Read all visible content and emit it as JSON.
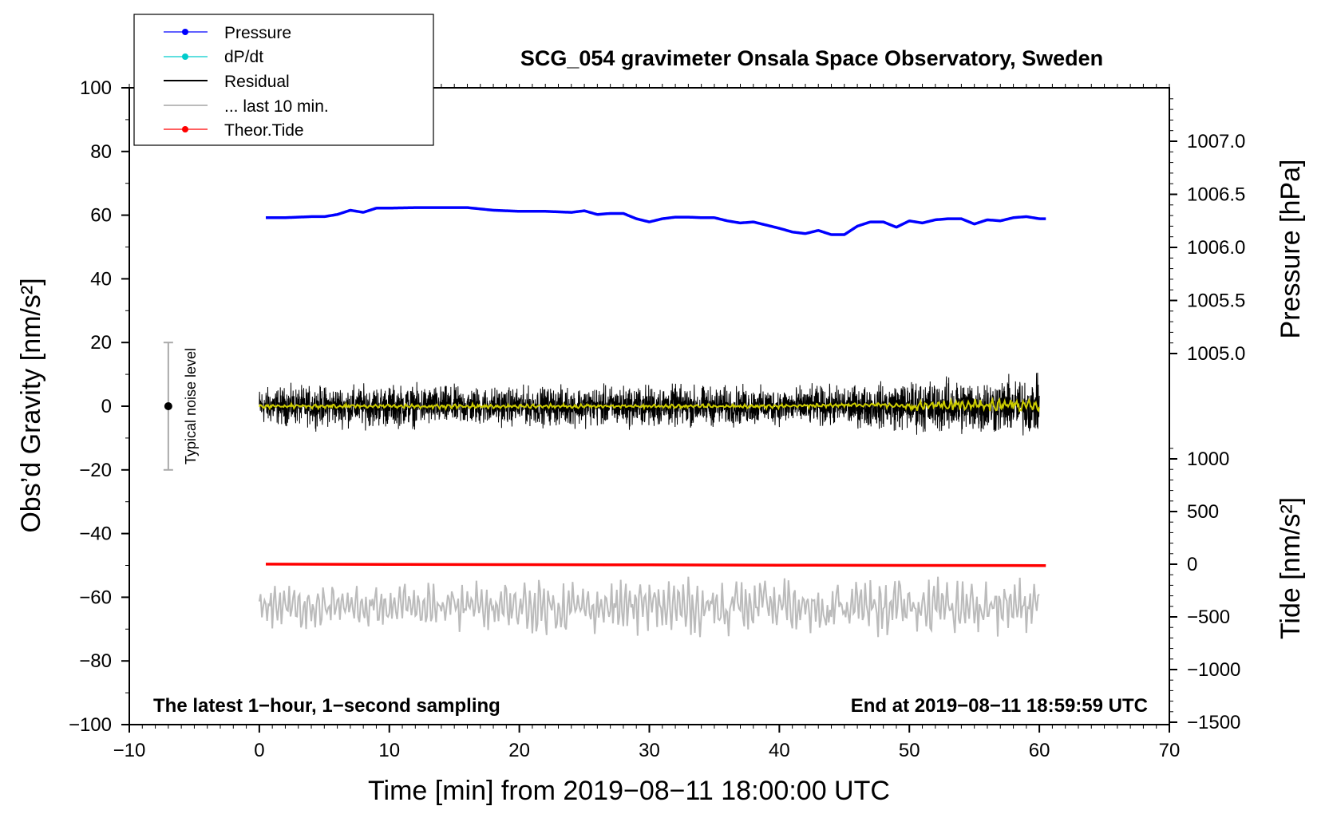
{
  "chart_data": {
    "type": "line",
    "title": "SCG_054 gravimeter Onsala Space Observatory, Sweden",
    "xlabel": "Time [min] from 2019−08−11 18:00:00 UTC",
    "ylabel_left": "Obs’d Gravity [nm/s²]",
    "ylabel_right_top": "Pressure [hPa]",
    "ylabel_right_bottom": "Tide [nm/s²]",
    "xlim": [
      -10,
      70
    ],
    "ylim": [
      -100,
      100
    ],
    "x_ticks": [
      "−10",
      "0",
      "10",
      "20",
      "30",
      "40",
      "50",
      "60",
      "70"
    ],
    "y_ticks": [
      "−100",
      "−80",
      "−60",
      "−40",
      "−20",
      "0",
      "20",
      "40",
      "60",
      "80",
      "100"
    ],
    "pressure_axis": {
      "ticks": [
        "1005.0",
        "1005.5",
        "1006.0",
        "1006.5",
        "1007.0"
      ]
    },
    "tide_axis": {
      "ticks": [
        "−1500",
        "−1000",
        "−500",
        "0",
        "500",
        "1000"
      ]
    },
    "legend": {
      "position": "top-left",
      "entries": [
        "Pressure",
        "dP/dt",
        "Residual",
        "... last 10 min.",
        "Theor.Tide"
      ]
    },
    "series": [
      {
        "name": "Pressure",
        "unit": "hPa",
        "color": "#0000ff",
        "x": [
          0.5,
          2,
          3,
          4,
          5,
          6,
          7,
          8,
          9,
          10,
          12,
          14,
          16,
          18,
          20,
          22,
          24,
          25,
          26,
          27,
          28,
          29,
          30,
          31,
          32,
          33,
          34,
          35,
          36,
          37,
          38,
          39,
          40,
          41,
          42,
          43,
          44,
          45,
          46,
          47,
          48,
          49,
          50,
          51,
          52,
          53,
          54,
          55,
          56,
          57,
          58,
          59,
          60,
          60.5
        ],
        "values": [
          1006.28,
          1006.28,
          1006.285,
          1006.29,
          1006.29,
          1006.31,
          1006.35,
          1006.33,
          1006.37,
          1006.37,
          1006.375,
          1006.375,
          1006.375,
          1006.35,
          1006.34,
          1006.34,
          1006.33,
          1006.345,
          1006.31,
          1006.32,
          1006.32,
          1006.27,
          1006.24,
          1006.27,
          1006.285,
          1006.285,
          1006.28,
          1006.28,
          1006.25,
          1006.23,
          1006.24,
          1006.21,
          1006.18,
          1006.145,
          1006.13,
          1006.16,
          1006.12,
          1006.12,
          1006.2,
          1006.24,
          1006.24,
          1006.19,
          1006.25,
          1006.23,
          1006.26,
          1006.27,
          1006.27,
          1006.22,
          1006.26,
          1006.25,
          1006.28,
          1006.29,
          1006.27,
          1006.27
        ]
      },
      {
        "name": "dP/dt",
        "color": "#00cccc"
      },
      {
        "name": "Residual",
        "unit": "nm/s²",
        "color": "#000000",
        "x": [
          0,
          10,
          20,
          30,
          40,
          47,
          50,
          55,
          60
        ],
        "values": [
          0,
          0,
          0,
          0,
          0,
          0,
          0,
          0,
          0
        ],
        "envelope": [
          {
            "x": 0,
            "amplitude": 8
          },
          {
            "x": 10,
            "amplitude": 9
          },
          {
            "x": 20,
            "amplitude": 8
          },
          {
            "x": 30,
            "amplitude": 9
          },
          {
            "x": 40,
            "amplitude": 8
          },
          {
            "x": 47,
            "amplitude": 9
          },
          {
            "x": 50,
            "amplitude": 11
          },
          {
            "x": 55,
            "amplitude": 12
          },
          {
            "x": 60,
            "amplitude": 12
          }
        ]
      },
      {
        "name": "Residual (smoothed)",
        "color": "#cccc00",
        "x": [
          0,
          10,
          20,
          30,
          40,
          47,
          50,
          55,
          60
        ],
        "values": [
          0,
          0,
          0,
          0,
          0,
          0.5,
          0,
          0.5,
          0
        ]
      },
      {
        "name": "... last 10 min.",
        "unit": "nm/s²",
        "color": "#bbbbbb",
        "x": [
          0,
          10,
          20,
          30,
          40,
          50,
          60
        ],
        "values": [
          -63,
          -63,
          -63,
          -63,
          -63,
          -63,
          -63
        ],
        "envelope": [
          {
            "x": 0,
            "amplitude": 7
          },
          {
            "x": 20,
            "amplitude": 9
          },
          {
            "x": 40,
            "amplitude": 10
          },
          {
            "x": 60,
            "amplitude": 10
          }
        ]
      },
      {
        "name": "Theor.Tide",
        "unit": "nm/s²",
        "color": "#ff0000",
        "x": [
          0.5,
          10,
          20,
          30,
          40,
          50,
          60.5
        ],
        "values": [
          1,
          -2,
          -4,
          -6,
          -9,
          -11,
          -13
        ]
      }
    ],
    "noise_level": {
      "label": "Typical noise level",
      "x": -7,
      "y": 0,
      "range": [
        -20,
        20
      ]
    },
    "annotations": {
      "bottom_left": "The latest 1−hour, 1−second sampling",
      "bottom_right": "End at 2019−08−11 18:59:59 UTC"
    }
  }
}
